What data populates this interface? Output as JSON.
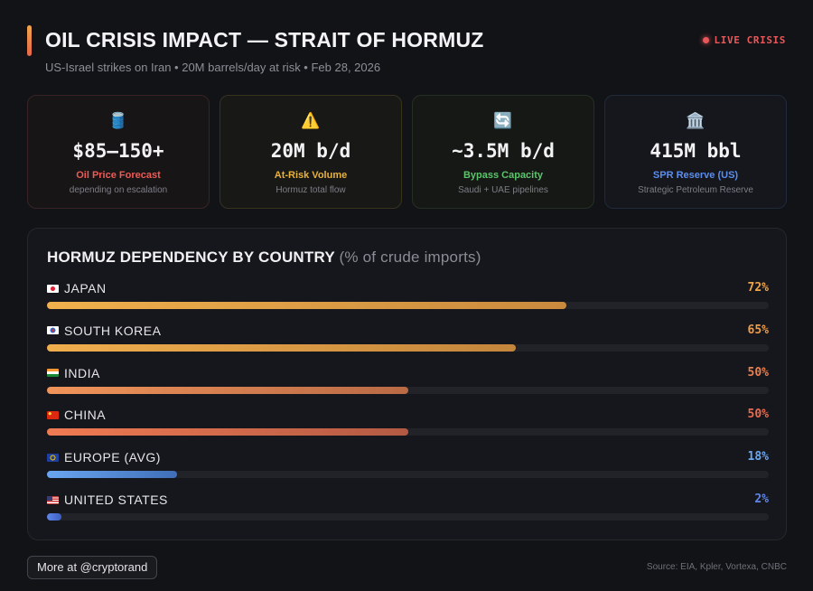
{
  "header": {
    "title": "OIL CRISIS IMPACT — STRAIT OF HORMUZ",
    "subtitle": "US-Israel strikes on Iran • 20M barrels/day at risk • Feb 28, 2026",
    "live_label": "LIVE CRISIS",
    "live_color": "#e8575a"
  },
  "stats": [
    {
      "icon": "oil-barrel-icon",
      "glyph": "🛢️",
      "value": "$85–150+",
      "label": "Oil Price Forecast",
      "sub": "depending on escalation",
      "color": "#ee5a55"
    },
    {
      "icon": "warning-icon",
      "glyph": "⚠️",
      "value": "20M b/d",
      "label": "At-Risk Volume",
      "sub": "Hormuz total flow",
      "color": "#e8b23c"
    },
    {
      "icon": "cycle-arrows-icon",
      "glyph": "🔄",
      "value": "~3.5M b/d",
      "label": "Bypass Capacity",
      "sub": "Saudi + UAE pipelines",
      "color": "#5cc46a"
    },
    {
      "icon": "classical-building-icon",
      "glyph": "🏛️",
      "value": "415M bbl",
      "label": "SPR Reserve (US)",
      "sub": "Strategic Petroleum Reserve",
      "color": "#5b8ef0"
    }
  ],
  "panel": {
    "title": "HORMUZ DEPENDENCY BY COUNTRY",
    "title_paren": "(% of crude imports)"
  },
  "countries": [
    {
      "name": "JAPAN",
      "flag": "japan-flag-icon",
      "value": 72,
      "label": "72%",
      "color": "#f0a44a",
      "grad": [
        "#f0b04c",
        "#c98a3e"
      ]
    },
    {
      "name": "SOUTH KOREA",
      "flag": "south-korea-flag-icon",
      "value": 65,
      "label": "65%",
      "color": "#ee9c4b",
      "grad": [
        "#f0ae4d",
        "#c3853c"
      ]
    },
    {
      "name": "INDIA",
      "flag": "india-flag-icon",
      "value": 50,
      "label": "50%",
      "color": "#ec7f4e",
      "grad": [
        "#f0945a",
        "#b96a45"
      ]
    },
    {
      "name": "CHINA",
      "flag": "china-flag-icon",
      "value": 50,
      "label": "50%",
      "color": "#ea6a4e",
      "grad": [
        "#f07a52",
        "#b35a44"
      ]
    },
    {
      "name": "EUROPE (AVG)",
      "flag": "eu-flag-icon",
      "value": 18,
      "label": "18%",
      "color": "#6aa6f0",
      "grad": [
        "#6aa6f0",
        "#3f6fb8"
      ]
    },
    {
      "name": "UNITED STATES",
      "flag": "us-flag-icon",
      "value": 2,
      "label": "2%",
      "color": "#5f86ea",
      "grad": [
        "#5f86ea",
        "#3d5fc0"
      ]
    }
  ],
  "footer": {
    "button_label": "More at @cryptorand",
    "source": "Source: EIA, Kpler, Vortexa, CNBC"
  }
}
